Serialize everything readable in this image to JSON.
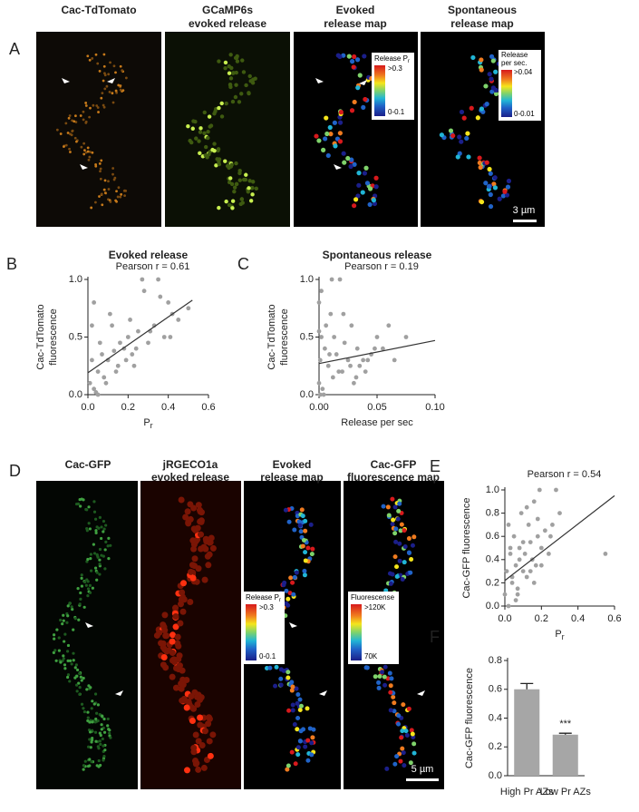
{
  "panel_A": {
    "letter": "A",
    "titles": [
      [
        "Cac-TdTomato"
      ],
      [
        "GCaMP6s",
        "evoked release"
      ],
      [
        "Evoked",
        "release map"
      ],
      [
        "Spontaneous",
        "release map"
      ]
    ],
    "colorbar_evoked": {
      "label": "Release P",
      "label_sub": "r",
      "high": ">0.3",
      "low": "0-0.1"
    },
    "colorbar_spont": {
      "label": [
        "Release",
        "per sec."
      ],
      "high": ">0.04",
      "low": "0-0.01"
    },
    "scale_bar": "3 µm"
  },
  "panel_D": {
    "letter": "D",
    "titles": [
      [
        "Cac-GFP"
      ],
      [
        "jRGECO1a",
        "evoked release"
      ],
      [
        "Evoked",
        "release map"
      ],
      [
        "Cac-GFP",
        "fluorescence map"
      ]
    ],
    "colorbar_evoked": {
      "label": "Release P",
      "label_sub": "r",
      "high": ">0.3",
      "low": "0-0.1"
    },
    "colorbar_fluor": {
      "label": "Fluorescense",
      "high": ">120K",
      "low": "70K"
    },
    "scale_bar": "5 µm"
  },
  "chart_data": [
    {
      "type": "scatter",
      "letter": "B",
      "title": "Evoked release",
      "annotation": "Pearson r = 0.61",
      "ylabel": [
        "Cac-TdTomato",
        "fluorescence"
      ],
      "xlabel": "P",
      "xlabel_sub": "r",
      "color": "#a0a0a0",
      "xlim": [
        0,
        0.6
      ],
      "xticks": [
        {
          "value": 0,
          "label": "0.0"
        },
        0.2,
        0.4,
        0.6
      ],
      "ylim": [
        0,
        1
      ],
      "yticks": [
        {
          "value": 0,
          "label": "0.0"
        },
        0.5,
        {
          "value": 1,
          "label": "1.0"
        }
      ],
      "x": [
        0.01,
        0.02,
        0.03,
        0.05,
        0.06,
        0.08,
        0.1,
        0.12,
        0.15,
        0.18,
        0.2,
        0.22,
        0.25,
        0.28,
        0.3,
        0.33,
        0.35,
        0.38,
        0.4,
        0.42,
        0.45,
        0.5,
        0.02,
        0.04,
        0.07,
        0.09,
        0.11,
        0.14,
        0.16,
        0.19,
        0.21,
        0.24,
        0.27,
        0.31,
        0.36,
        0.41,
        0.05,
        0.13,
        0.23,
        0.03
      ],
      "values": [
        0.1,
        0.3,
        0.05,
        0.2,
        0.45,
        0.15,
        0.3,
        0.6,
        0.25,
        0.4,
        0.5,
        0.35,
        0.55,
        0.9,
        0.45,
        0.6,
        1.0,
        0.5,
        0.8,
        0.7,
        0.65,
        0.75,
        0.6,
        0.02,
        0.35,
        0.1,
        0.7,
        0.2,
        0.45,
        0.3,
        0.65,
        0.4,
        1.0,
        0.55,
        0.85,
        0.5,
        0.0,
        0.38,
        0.25,
        0.8
      ],
      "trendline": {
        "x": [
          0,
          0.52
        ],
        "y": [
          0.19,
          0.82
        ]
      }
    },
    {
      "type": "scatter",
      "letter": "C",
      "title": "Spontaneous release",
      "annotation": "Pearson r = 0.19",
      "ylabel": [
        "Cac-TdTomato",
        "fluorescence"
      ],
      "xlabel": "Release per sec",
      "color": "#a0a0a0",
      "xlim": [
        0,
        0.1
      ],
      "xticks": [
        {
          "value": 0,
          "label": "0.00"
        },
        {
          "value": 0.05,
          "label": "0.05"
        },
        {
          "value": 0.1,
          "label": "0.10"
        }
      ],
      "ylim": [
        0,
        1
      ],
      "yticks": [
        {
          "value": 0,
          "label": "0.0"
        },
        0.5,
        {
          "value": 1,
          "label": "1.0"
        }
      ],
      "x": [
        0.0,
        0.0,
        0.001,
        0.002,
        0.003,
        0.005,
        0.008,
        0.01,
        0.012,
        0.015,
        0.018,
        0.02,
        0.022,
        0.025,
        0.028,
        0.03,
        0.033,
        0.035,
        0.038,
        0.04,
        0.045,
        0.05,
        0.055,
        0.06,
        0.065,
        0.075,
        0.002,
        0.004,
        0.006,
        0.009,
        0.013,
        0.017,
        0.021,
        0.027,
        0.032,
        0.042,
        0.048,
        0.0,
        0.001,
        0.011
      ],
      "values": [
        0.1,
        0.8,
        0.3,
        0.5,
        0.05,
        0.4,
        0.25,
        0.7,
        0.15,
        0.35,
        1.0,
        0.2,
        0.45,
        0.3,
        0.6,
        0.1,
        0.4,
        0.25,
        0.3,
        0.2,
        0.35,
        0.5,
        0.4,
        0.6,
        0.3,
        0.5,
        0.9,
        0.0,
        0.6,
        0.35,
        0.5,
        0.2,
        0.7,
        0.25,
        0.15,
        0.3,
        0.4,
        0.55,
        0.0,
        1.0
      ],
      "trendline": {
        "x": [
          0,
          0.1
        ],
        "y": [
          0.27,
          0.47
        ]
      }
    },
    {
      "type": "scatter",
      "letter": "E",
      "annotation": "Pearson r = 0.54",
      "ylabel": "Cac-GFP fluorescence",
      "xlabel": "P",
      "xlabel_sub": "r",
      "color": "#a0a0a0",
      "xlim": [
        0,
        0.6
      ],
      "xticks": [
        {
          "value": 0,
          "label": "0.0"
        },
        0.2,
        0.4,
        0.6
      ],
      "ylim": [
        0,
        1
      ],
      "yticks": [
        {
          "value": 0,
          "label": "0.0"
        },
        0.2,
        0.4,
        0.6,
        0.8,
        {
          "value": 1,
          "label": "1.0"
        }
      ],
      "x": [
        0.0,
        0.01,
        0.02,
        0.03,
        0.04,
        0.05,
        0.06,
        0.07,
        0.08,
        0.09,
        0.1,
        0.11,
        0.12,
        0.13,
        0.14,
        0.15,
        0.16,
        0.17,
        0.18,
        0.19,
        0.2,
        0.22,
        0.24,
        0.26,
        0.28,
        0.3,
        0.02,
        0.04,
        0.06,
        0.08,
        0.1,
        0.12,
        0.14,
        0.16,
        0.18,
        0.2,
        0.25,
        0.55,
        0.03,
        0.07
      ],
      "values": [
        0.1,
        0.3,
        0.0,
        0.45,
        0.2,
        0.6,
        0.35,
        0.15,
        0.5,
        0.8,
        0.3,
        0.45,
        0.25,
        0.7,
        0.55,
        0.4,
        0.9,
        0.35,
        0.6,
        1.0,
        0.5,
        0.65,
        0.45,
        0.7,
        1.0,
        0.8,
        0.7,
        0.25,
        0.05,
        0.4,
        0.55,
        0.85,
        0.3,
        0.2,
        0.75,
        0.35,
        0.6,
        0.45,
        0.5,
        0.1
      ],
      "trendline": {
        "x": [
          0,
          0.6
        ],
        "y": [
          0.22,
          0.95
        ]
      }
    },
    {
      "type": "bar",
      "letter": "F",
      "ylabel": "Cac-GFP fluorescence",
      "color": "#a6a6a6",
      "categories": [
        "High Pr AZs",
        "Low Pr AZs"
      ],
      "values": [
        0.6,
        0.285
      ],
      "errors": [
        0.04,
        0.01
      ],
      "annotation": "***",
      "ylim": [
        0,
        0.8
      ],
      "yticks": [
        {
          "value": 0,
          "label": "0.0"
        },
        0.2,
        0.4,
        0.6,
        0.8
      ]
    }
  ]
}
